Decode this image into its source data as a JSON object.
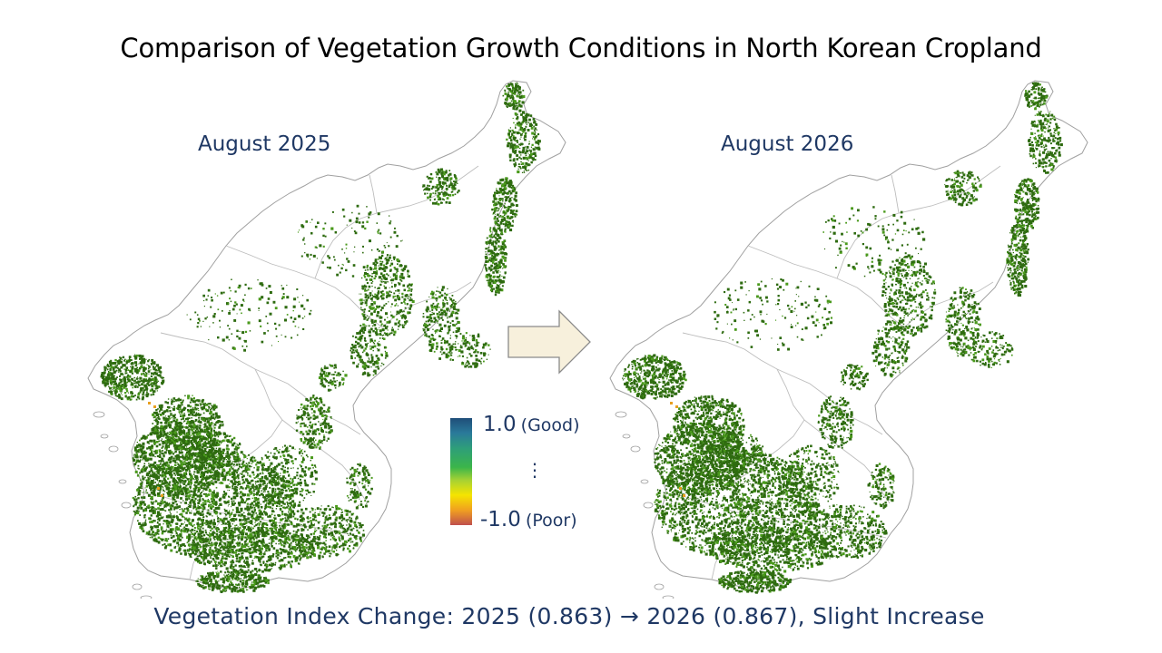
{
  "title": "Comparison of Vegetation Growth Conditions in North Korean Cropland",
  "maps": [
    {
      "label": "August 2025"
    },
    {
      "label": "August 2026"
    }
  ],
  "legend": {
    "max_value": "1.0",
    "max_desc": "(Good)",
    "ellipsis": "⋮",
    "min_value": "-1.0",
    "min_desc": "(Poor)",
    "colors": [
      "#1f4e79",
      "#2e9e7a",
      "#3bb54a",
      "#f5e400",
      "#c0504d"
    ]
  },
  "caption": "Vegetation Index Change: 2025 (0.863) → 2026 (0.867), Slight Increase",
  "vegetation_index": [
    {
      "year": 2025,
      "value": 0.863
    },
    {
      "year": 2026,
      "value": 0.867
    }
  ],
  "arrow_icon": "right-arrow-icon",
  "colors": {
    "vegetation": "#2e6b10",
    "vegetation_light": "#4a9a1c",
    "outline": "#a0a0a0",
    "text_accent": "#1f3864",
    "arrow_fill": "#f7f0dc"
  }
}
